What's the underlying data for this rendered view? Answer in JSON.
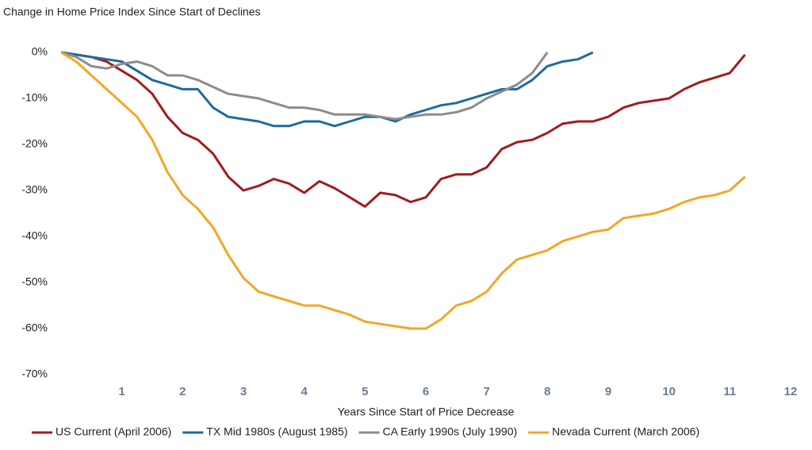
{
  "chart_data": {
    "type": "line",
    "title": "Change in Home Price Index Since Start of Declines",
    "x_label": "Years Since Start of Price Decrease",
    "x": [
      0,
      0.25,
      0.5,
      0.75,
      1,
      1.25,
      1.5,
      1.75,
      2,
      2.25,
      2.5,
      2.75,
      3,
      3.25,
      3.5,
      3.75,
      4,
      4.25,
      4.5,
      4.75,
      5,
      5.25,
      5.5,
      5.75,
      6,
      6.25,
      6.5,
      6.75,
      7,
      7.25,
      7.5,
      7.75,
      8,
      8.25,
      8.5,
      8.75,
      9,
      9.25,
      9.5,
      9.75,
      10,
      10.25,
      10.5,
      10.75,
      11,
      11.25
    ],
    "series": [
      {
        "name": "US Current (April 2006)",
        "color": "#a01c1f",
        "values": [
          0,
          -0.5,
          -1,
          -2,
          -4,
          -6,
          -9,
          -14,
          -17.5,
          -19,
          -22,
          -27,
          -30,
          -29,
          -27.5,
          -28.5,
          -30.5,
          -28,
          -29.5,
          -31.5,
          -33.5,
          -30.5,
          -31,
          -32.5,
          -31.5,
          -27.5,
          -26.5,
          -26.5,
          -25,
          -21,
          -19.5,
          -19,
          -17.5,
          -15.5,
          -15,
          -15,
          -14,
          -12,
          -11,
          -10.5,
          -10,
          -8,
          -6.5,
          -5.5,
          -4.5,
          -0.5
        ]
      },
      {
        "name": "TX Mid 1980s (August 1985)",
        "color": "#1f6a9e",
        "values": [
          0,
          -0.5,
          -1,
          -1.5,
          -2,
          -4,
          -6,
          -7,
          -8,
          -8,
          -12,
          -14,
          -14.5,
          -15,
          -16,
          -16,
          -15,
          -15,
          -16,
          -15,
          -14,
          -14,
          -15,
          -13.5,
          -12.5,
          -11.5,
          -11,
          -10,
          -9,
          -8,
          -8,
          -6,
          -3,
          -2,
          -1.5,
          0,
          null,
          null,
          null,
          null,
          null,
          null,
          null,
          null,
          null,
          null
        ]
      },
      {
        "name": "CA Early 1990s (July 1990)",
        "color": "#8c8c8c",
        "values": [
          0,
          -1,
          -3,
          -3.5,
          -2.5,
          -2,
          -3,
          -5,
          -5,
          -6,
          -7.5,
          -9,
          -9.5,
          -10,
          -11,
          -12,
          -12,
          -12.5,
          -13.5,
          -13.5,
          -13.5,
          -14,
          -14.5,
          -14,
          -13.5,
          -13.5,
          -13,
          -12,
          -10,
          -8.5,
          -7,
          -4.5,
          0,
          null,
          null,
          null,
          null,
          null,
          null,
          null,
          null,
          null,
          null,
          null,
          null,
          null
        ]
      },
      {
        "name": "Nevada Current (March 2006)",
        "color": "#f5a623",
        "values": [
          0,
          -2,
          -5,
          -8,
          -11,
          -14,
          -19,
          -26,
          -31,
          -34,
          -38,
          -44,
          -49,
          -52,
          -53,
          -54,
          -55,
          -55,
          -56,
          -57,
          -58.5,
          -59,
          -59.5,
          -60,
          -60,
          -58,
          -55,
          -54,
          -52,
          -48,
          -45,
          -44,
          -43,
          -41,
          -40,
          -39,
          -38.5,
          -36,
          -35.5,
          -35,
          -34,
          -32.5,
          -31.5,
          -31,
          -30,
          -27
        ]
      }
    ],
    "xlim": [
      0,
      12
    ],
    "xticks": [
      1,
      2,
      3,
      4,
      5,
      6,
      7,
      8,
      9,
      10,
      11,
      12
    ],
    "ylim": [
      -70,
      0
    ],
    "yticks": [
      {
        "value": 0,
        "label": "0%"
      },
      {
        "value": -10,
        "label": "-10%"
      },
      {
        "value": -20,
        "label": "-20%"
      },
      {
        "value": -30,
        "label": "-30%"
      },
      {
        "value": -40,
        "label": "-40%"
      },
      {
        "value": -50,
        "label": "-50%"
      },
      {
        "value": -60,
        "label": "-60%"
      },
      {
        "value": -70,
        "label": "-70%"
      }
    ],
    "legend": "bottom"
  }
}
